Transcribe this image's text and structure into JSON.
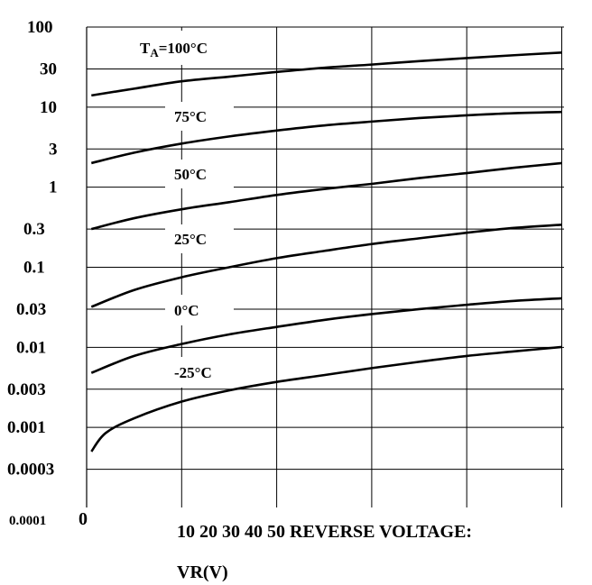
{
  "chart_data": {
    "type": "line",
    "title": "",
    "xlabel_line1": "10 20 30 40 50 REVERSE VOLTAGE:",
    "xlabel_line2": "VR(V)",
    "x_zero_label": "0",
    "xlim": [
      0,
      60
    ],
    "ylim": [
      0.0001,
      100
    ],
    "y_scale": "log",
    "grid": true,
    "y_ticks": [
      {
        "value": 100,
        "label": "100"
      },
      {
        "value": 30,
        "label": "30"
      },
      {
        "value": 10,
        "label": "10"
      },
      {
        "value": 3,
        "label": "3"
      },
      {
        "value": 1,
        "label": "1"
      },
      {
        "value": 0.3,
        "label": "0.3"
      },
      {
        "value": 0.1,
        "label": "0.1"
      },
      {
        "value": 0.03,
        "label": "0.03"
      },
      {
        "value": 0.01,
        "label": "0.01"
      },
      {
        "value": 0.003,
        "label": "0.003"
      },
      {
        "value": 0.001,
        "label": "0.001"
      },
      {
        "value": 0.0003,
        "label": "0.0003"
      },
      {
        "value": 0.0001,
        "label": "0.0001"
      }
    ],
    "x_gridlines": [
      10,
      20,
      30,
      40,
      50
    ],
    "series": [
      {
        "label_main": "T",
        "label_sub": "A",
        "label_rest": "=100°C",
        "x": [
          0.5,
          5,
          10,
          15,
          20,
          25,
          30,
          35,
          40,
          45,
          50
        ],
        "y": [
          14,
          17,
          21,
          24,
          27.5,
          31,
          34,
          37.5,
          41,
          44.5,
          48
        ]
      },
      {
        "label_main": "75°C",
        "label_sub": "",
        "label_rest": "",
        "x": [
          0.5,
          5,
          10,
          15,
          20,
          25,
          30,
          35,
          40,
          45,
          50
        ],
        "y": [
          2,
          2.7,
          3.5,
          4.3,
          5.1,
          5.9,
          6.6,
          7.3,
          7.9,
          8.4,
          8.7
        ]
      },
      {
        "label_main": "50°C",
        "label_sub": "",
        "label_rest": "",
        "x": [
          0.5,
          5,
          10,
          15,
          20,
          25,
          30,
          35,
          40,
          45,
          50
        ],
        "y": [
          0.3,
          0.41,
          0.53,
          0.65,
          0.8,
          0.95,
          1.1,
          1.3,
          1.5,
          1.75,
          2.0
        ]
      },
      {
        "label_main": "25°C",
        "label_sub": "",
        "label_rest": "",
        "x": [
          0.5,
          5,
          10,
          15,
          20,
          25,
          30,
          35,
          40,
          45,
          50
        ],
        "y": [
          0.032,
          0.052,
          0.075,
          0.1,
          0.13,
          0.16,
          0.195,
          0.23,
          0.27,
          0.31,
          0.34
        ]
      },
      {
        "label_main": "0°C",
        "label_sub": "",
        "label_rest": "",
        "x": [
          0.5,
          5,
          10,
          15,
          20,
          25,
          30,
          35,
          40,
          45,
          50
        ],
        "y": [
          0.0048,
          0.0078,
          0.011,
          0.0145,
          0.018,
          0.022,
          0.026,
          0.03,
          0.034,
          0.038,
          0.041
        ]
      },
      {
        "label_main": "-25°C",
        "label_sub": "",
        "label_rest": "",
        "x": [
          0.5,
          2,
          5,
          10,
          15,
          20,
          25,
          30,
          35,
          40,
          45,
          50
        ],
        "y": [
          0.0005,
          0.00085,
          0.0013,
          0.0021,
          0.0029,
          0.0037,
          0.0045,
          0.0055,
          0.0066,
          0.0078,
          0.0089,
          0.0101
        ]
      }
    ]
  }
}
